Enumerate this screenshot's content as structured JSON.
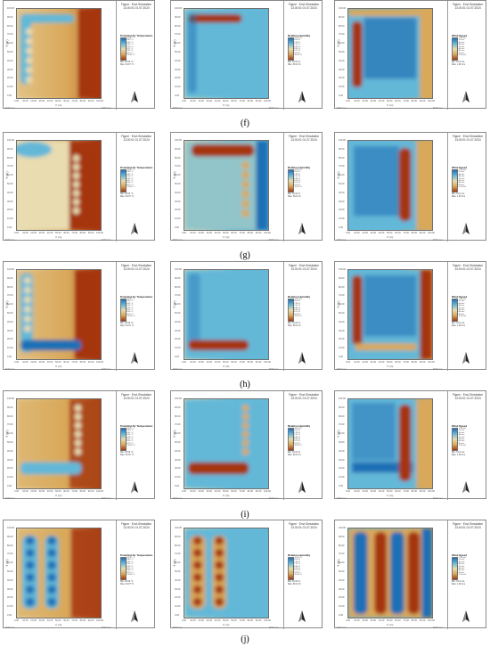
{
  "rows": [
    {
      "caption": "(f)"
    },
    {
      "caption": "(g)"
    },
    {
      "caption": "(h)"
    },
    {
      "caption": "(i)"
    },
    {
      "caption": "(j)"
    }
  ],
  "panel_header": {
    "title": "Figure · Envi-Simulation",
    "date": "13.00.01 01.07.2024"
  },
  "legend_titles": [
    "Potential Air Temperature",
    "Relative Humidity",
    "Wind Speed"
  ],
  "axis": {
    "x_label": "X (m)",
    "y_label": "Y (m)",
    "x_ticks": [
      "0.00",
      "10.00",
      "20.00",
      "30.00",
      "40.00",
      "50.00",
      "60.00",
      "70.00",
      "80.00",
      "90.00",
      "100.00"
    ],
    "y_ticks": [
      "100.00",
      "90.00",
      "80.00",
      "70.00",
      "60.00",
      "50.00",
      "40.00",
      "30.00",
      "20.00",
      "10.00",
      "0.00"
    ]
  },
  "legend_ticks": [
    [
      "> 30.97 °C",
      "30.80 °C",
      "30.62 °C",
      "30.45 °C",
      "30.28 °C",
      "30.11 °C",
      "29.94 °C",
      "29.76 °C",
      "< 29.59 °C"
    ],
    [
      "> 59.10 %",
      "58.54 %",
      "57.98 %",
      "57.42 %",
      "56.86 %",
      "56.30 %",
      "55.74 %",
      "55.18 %",
      "< 54.62 %"
    ],
    [
      "> 1.28 m/s",
      "1.14 m/s",
      "1.00 m/s",
      "0.86 m/s",
      "0.72 m/s",
      "0.58 m/s",
      "0.44 m/s",
      "0.30 m/s",
      "< 0.16 m/s"
    ]
  ],
  "minmax": [
    [
      "Min: 29.59 °C",
      "Max: 30.97 °C"
    ],
    [
      "Min: 54.62 %",
      "Max: 59.10 %"
    ],
    [
      "Min: 0.16 m/s",
      "Max: 1.28 m/s"
    ]
  ],
  "footer_left": "ENVI-met",
  "footer_right": "ENVI-met",
  "north_label": "N",
  "colors": {
    "warm": "#a5360e",
    "mid": "#d9a85a",
    "neutral": "#e8dcb0",
    "cool": "#64b8d8",
    "cold": "#1f6fb5"
  }
}
